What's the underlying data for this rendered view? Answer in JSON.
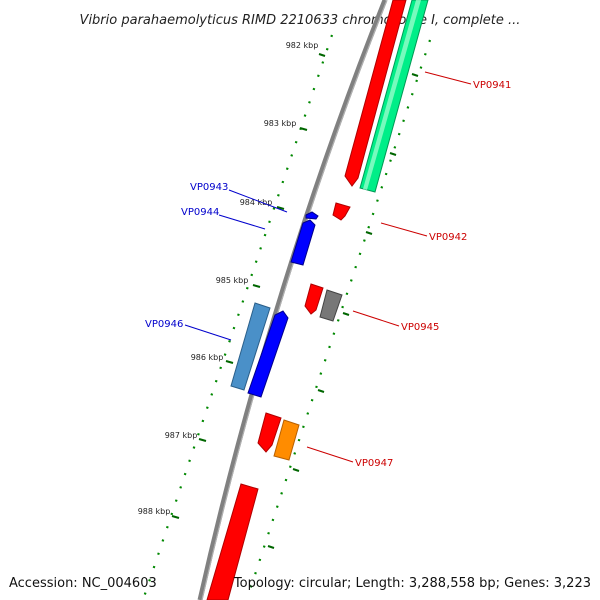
{
  "title": "Vibrio parahaemolyticus RIMD 2210633 chromosome I, complete ...",
  "footer": {
    "accession": "Accession: NC_004603",
    "summary": "Topology: circular; Length: 3,288,558 bp; Genes: 3,223"
  },
  "ticks": [
    "982 kbp",
    "983 kbp",
    "984 kbp",
    "985 kbp",
    "986 kbp",
    "987 kbp",
    "988 kbp"
  ],
  "genes": [
    {
      "name": "VP0941",
      "color": "#cc0000"
    },
    {
      "name": "VP0942",
      "color": "#cc0000"
    },
    {
      "name": "VP0943",
      "color": "#0000cc"
    },
    {
      "name": "VP0944",
      "color": "#0000cc"
    },
    {
      "name": "VP0945",
      "color": "#cc0000"
    },
    {
      "name": "VP0946",
      "color": "#0000cc"
    },
    {
      "name": "VP0947",
      "color": "#cc0000"
    }
  ],
  "colors": {
    "backbone": "#808080",
    "cds_forward": "#ff0000",
    "cds_reverse": "#0000ff",
    "rrna": "#00ee88",
    "trna_like": "#4a90c8",
    "other": "#777777",
    "orange": "#ff8c00",
    "tick": "#006600"
  }
}
